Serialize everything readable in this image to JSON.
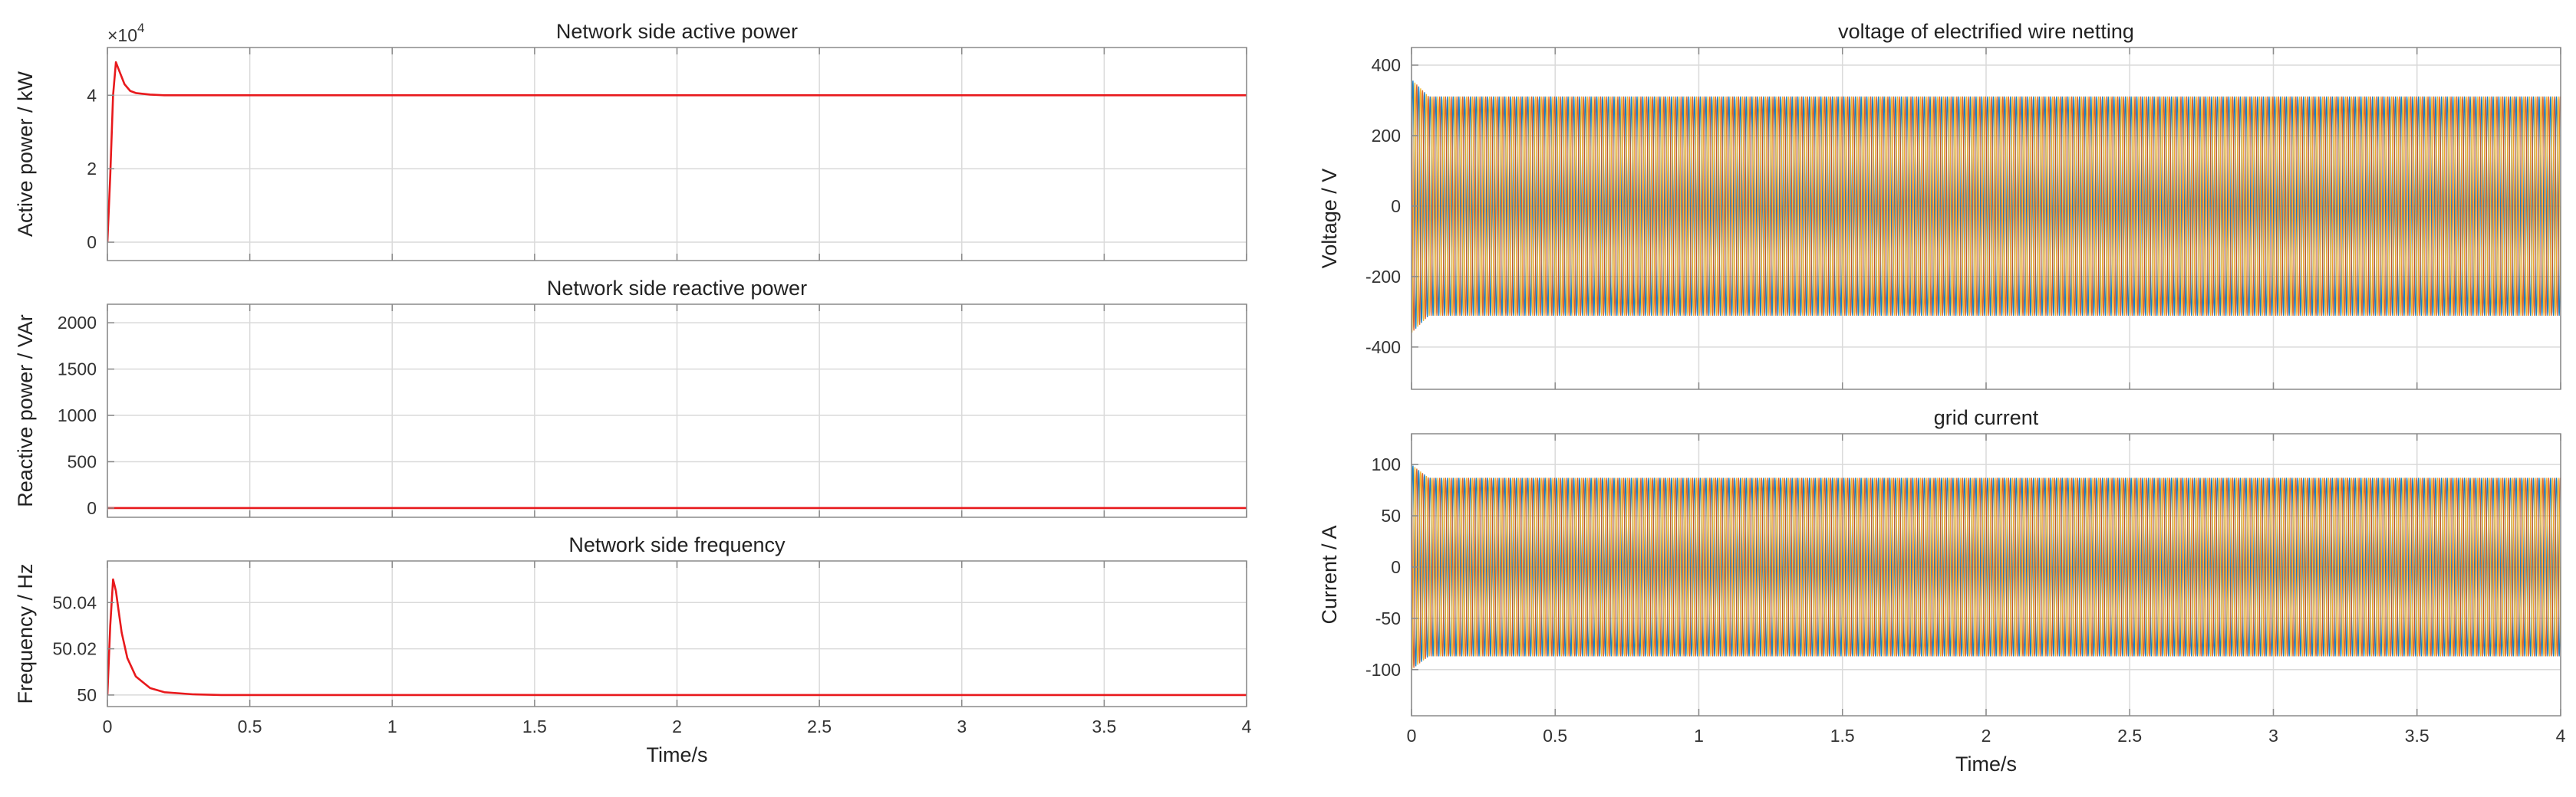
{
  "chart_data": [
    {
      "type": "line",
      "title": "Network side active power",
      "ylabel": "Active power / kW",
      "xlabel": "",
      "xlim": [
        0,
        4
      ],
      "ylim": [
        -0.5,
        5.3
      ],
      "y_multiplier": "×10^4",
      "y_exponent_label": "4",
      "xticks": [
        0,
        0.5,
        1,
        1.5,
        2,
        2.5,
        3,
        3.5,
        4
      ],
      "xtick_labels": [],
      "yticks": [
        0,
        2,
        4
      ],
      "ytick_labels": [
        "0",
        "2",
        "4"
      ],
      "grid": true,
      "series": [
        {
          "color": "#e8191c",
          "x": [
            0,
            0.01,
            0.02,
            0.03,
            0.04,
            0.06,
            0.08,
            0.1,
            0.15,
            0.2,
            0.3,
            1,
            2,
            3,
            4
          ],
          "y": [
            0,
            1.8,
            4.0,
            4.9,
            4.7,
            4.3,
            4.12,
            4.06,
            4.02,
            4.0,
            4.0,
            4.0,
            4.0,
            4.0,
            4.0
          ]
        }
      ]
    },
    {
      "type": "line",
      "title": "Network side reactive power",
      "ylabel": "Reactive power / VAr",
      "xlabel": "",
      "xlim": [
        0,
        4
      ],
      "ylim": [
        -100,
        2200
      ],
      "xticks": [
        0,
        0.5,
        1,
        1.5,
        2,
        2.5,
        3,
        3.5,
        4
      ],
      "xtick_labels": [],
      "yticks": [
        0,
        500,
        1000,
        1500,
        2000
      ],
      "ytick_labels": [
        "0",
        "500",
        "1000",
        "1500",
        "2000"
      ],
      "grid": true,
      "series": [
        {
          "color": "#e8191c",
          "x": [
            0,
            4
          ],
          "y": [
            0,
            0
          ]
        }
      ]
    },
    {
      "type": "line",
      "title": "Network side frequency",
      "ylabel": "Frequency / Hz",
      "xlabel": "Time/s",
      "xlim": [
        0,
        4
      ],
      "ylim": [
        49.995,
        50.058
      ],
      "xticks": [
        0,
        0.5,
        1,
        1.5,
        2,
        2.5,
        3,
        3.5,
        4
      ],
      "xtick_labels": [
        "0",
        "0.5",
        "1",
        "1.5",
        "2",
        "2.5",
        "3",
        "3.5",
        "4"
      ],
      "yticks": [
        50,
        50.02,
        50.04
      ],
      "ytick_labels": [
        "50",
        "50.02",
        "50.04"
      ],
      "grid": true,
      "series": [
        {
          "color": "#e8191c",
          "x": [
            0,
            0.01,
            0.02,
            0.03,
            0.04,
            0.05,
            0.07,
            0.1,
            0.15,
            0.2,
            0.3,
            0.4,
            1,
            2,
            3,
            4
          ],
          "y": [
            50.0,
            50.03,
            50.05,
            50.045,
            50.036,
            50.027,
            50.016,
            50.008,
            50.003,
            50.0012,
            50.0003,
            50.0,
            50.0,
            50.0,
            50.0,
            50.0
          ]
        }
      ]
    },
    {
      "type": "line",
      "title": "voltage of electrified wire netting",
      "ylabel": "Voltage / V",
      "xlabel": "",
      "xlim": [
        0,
        4
      ],
      "ylim": [
        -520,
        450
      ],
      "xticks": [
        0,
        0.5,
        1,
        1.5,
        2,
        2.5,
        3,
        3.5,
        4
      ],
      "xtick_labels": [],
      "yticks": [
        -400,
        -200,
        0,
        200,
        400
      ],
      "ytick_labels": [
        "-400",
        "-200",
        "0",
        "200",
        "400"
      ],
      "grid": true,
      "waveform": {
        "frequency_hz": 50,
        "amplitude": 311,
        "phases": 3,
        "initial_peak": 360
      },
      "series": [
        {
          "color": "#0072bd"
        },
        {
          "color": "#d95319"
        },
        {
          "color": "#edb120"
        }
      ]
    },
    {
      "type": "line",
      "title": "grid current",
      "ylabel": "Current / A",
      "xlabel": "Time/s",
      "xlim": [
        0,
        4
      ],
      "ylim": [
        -145,
        130
      ],
      "xticks": [
        0,
        0.5,
        1,
        1.5,
        2,
        2.5,
        3,
        3.5,
        4
      ],
      "xtick_labels": [
        "0",
        "0.5",
        "1",
        "1.5",
        "2",
        "2.5",
        "3",
        "3.5",
        "4"
      ],
      "yticks": [
        -100,
        -50,
        0,
        50,
        100
      ],
      "ytick_labels": [
        "-100",
        "-50",
        "0",
        "50",
        "100"
      ],
      "grid": true,
      "waveform": {
        "frequency_hz": 50,
        "amplitude": 87,
        "phases": 3,
        "initial_peak": 100
      },
      "series": [
        {
          "color": "#0072bd"
        },
        {
          "color": "#d95319"
        },
        {
          "color": "#edb120"
        }
      ]
    }
  ]
}
